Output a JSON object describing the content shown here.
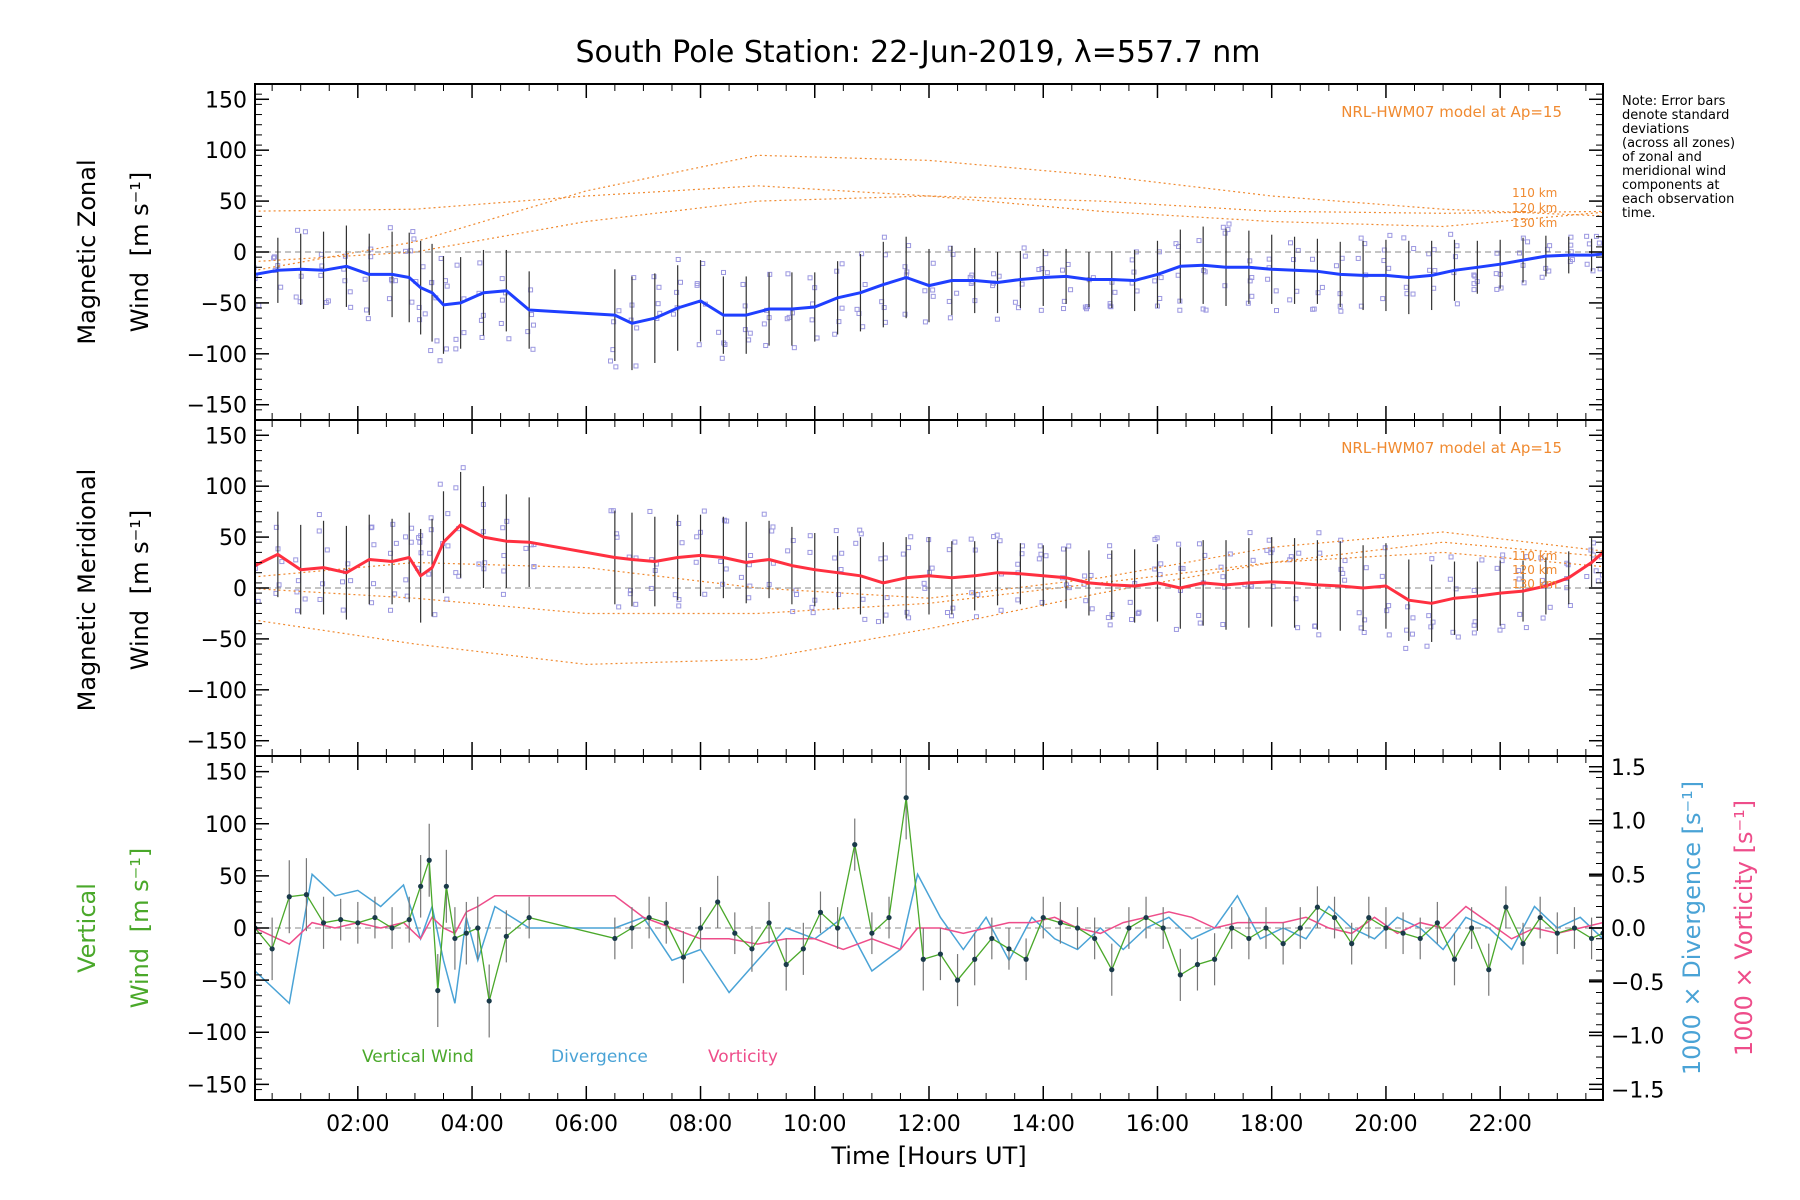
{
  "figure_title": "South Pole Station: 22-Jun-2019, λ=557.7 nm",
  "x_axis_label": "Time [Hours UT]",
  "note": "Note: Error bars\ndenote standard\ndeviations\n(across all zones)\nof zonal and\nmeridional wind\ncomponents at\neach observation\ntime.",
  "model_label": "NRL-HWM07 model at Ap=15",
  "model_altitudes": [
    "110 km",
    "120 km",
    "130 km"
  ],
  "colors": {
    "zonal_line": "#1f3fff",
    "zonal_alt": "#4aa3df",
    "meridional_line": "#ff3040",
    "model": "#f08a30",
    "scatter": "#9b97e0",
    "vertical": "#4aa82a",
    "divergence": "#4aa3d6",
    "vorticity": "#ee4d8a",
    "errorbar": "#333333",
    "zero_line": "#888888"
  },
  "chart_data": [
    {
      "type": "line",
      "panel": "zonal",
      "ylabel_line1": "Magnetic Zonal",
      "ylabel_line2": "Wind",
      "ylabel_units": "[m s⁻¹]",
      "xlim": [
        0.2,
        23.8
      ],
      "ylim": [
        -165,
        165
      ],
      "yticks": [
        -150,
        -100,
        -50,
        0,
        50,
        100,
        150
      ],
      "xticks": [
        2,
        4,
        6,
        8,
        10,
        12,
        14,
        16,
        18,
        20,
        22
      ],
      "xtick_labels": [
        "02:00",
        "04:00",
        "06:00",
        "08:00",
        "10:00",
        "12:00",
        "14:00",
        "16:00",
        "18:00",
        "20:00",
        "22:00"
      ],
      "series": [
        {
          "name": "Magnetic Zonal Wind",
          "x": [
            0.2,
            0.6,
            1.0,
            1.4,
            1.8,
            2.2,
            2.6,
            2.9,
            3.1,
            3.3,
            3.5,
            3.8,
            4.2,
            4.6,
            5.0,
            6.5,
            6.8,
            7.2,
            7.6,
            8.0,
            8.4,
            8.8,
            9.2,
            9.6,
            10.0,
            10.4,
            10.8,
            11.2,
            11.6,
            12.0,
            12.4,
            12.8,
            13.2,
            13.6,
            14.0,
            14.4,
            14.8,
            15.2,
            15.6,
            16.0,
            16.4,
            16.8,
            17.2,
            17.6,
            18.0,
            18.4,
            18.8,
            19.2,
            19.6,
            20.0,
            20.4,
            20.8,
            21.2,
            21.6,
            22.0,
            22.4,
            22.8,
            23.2,
            23.6,
            23.8
          ],
          "y": [
            -22,
            -18,
            -17,
            -18,
            -14,
            -22,
            -22,
            -25,
            -35,
            -40,
            -52,
            -50,
            -40,
            -38,
            -57,
            -62,
            -70,
            -65,
            -55,
            -48,
            -62,
            -62,
            -56,
            -56,
            -54,
            -45,
            -40,
            -32,
            -25,
            -33,
            -28,
            -28,
            -30,
            -27,
            -25,
            -24,
            -27,
            -27,
            -28,
            -22,
            -14,
            -13,
            -15,
            -15,
            -17,
            -18,
            -19,
            -22,
            -23,
            -23,
            -25,
            -23,
            -18,
            -15,
            -12,
            -8,
            -4,
            -3,
            -3,
            -2
          ],
          "error": [
            30,
            32,
            35,
            38,
            40,
            40,
            42,
            44,
            46,
            48,
            48,
            45,
            42,
            40,
            38,
            45,
            46,
            44,
            42,
            40,
            38,
            38,
            36,
            36,
            34,
            36,
            38,
            42,
            40,
            36,
            34,
            32,
            30,
            28,
            28,
            27,
            27,
            28,
            30,
            33,
            36,
            38,
            38,
            36,
            34,
            33,
            32,
            32,
            34,
            35,
            36,
            34,
            30,
            26,
            24,
            22,
            20,
            18,
            16,
            15
          ]
        },
        {
          "name": "NRL-HWM07 110 km",
          "x": [
            0,
            3,
            6,
            9,
            12,
            15,
            18,
            21,
            24
          ],
          "y": [
            40,
            42,
            55,
            65,
            55,
            40,
            30,
            25,
            40
          ]
        },
        {
          "name": "NRL-HWM07 120 km",
          "x": [
            0,
            3,
            6,
            9,
            12,
            15,
            18,
            21,
            24
          ],
          "y": [
            -20,
            10,
            60,
            95,
            90,
            75,
            55,
            42,
            35
          ]
        },
        {
          "name": "NRL-HWM07 130 km",
          "x": [
            0,
            3,
            6,
            9,
            12,
            15,
            18,
            21,
            24
          ],
          "y": [
            -10,
            0,
            30,
            50,
            55,
            50,
            40,
            38,
            40
          ]
        }
      ]
    },
    {
      "type": "line",
      "panel": "meridional",
      "ylabel_line1": "Magnetic Meridional",
      "ylabel_line2": "Wind",
      "ylabel_units": "[m s⁻¹]",
      "xlim": [
        0.2,
        23.8
      ],
      "ylim": [
        -165,
        165
      ],
      "yticks": [
        -150,
        -100,
        -50,
        0,
        50,
        100,
        150
      ],
      "series": [
        {
          "name": "Magnetic Meridional Wind",
          "x": [
            0.2,
            0.6,
            1.0,
            1.4,
            1.8,
            2.2,
            2.6,
            2.9,
            3.1,
            3.3,
            3.5,
            3.8,
            4.2,
            4.6,
            5.0,
            6.5,
            6.8,
            7.2,
            7.6,
            8.0,
            8.4,
            8.8,
            9.2,
            9.6,
            10.0,
            10.4,
            10.8,
            11.2,
            11.6,
            12.0,
            12.4,
            12.8,
            13.2,
            13.6,
            14.0,
            14.4,
            14.8,
            15.2,
            15.6,
            16.0,
            16.4,
            16.8,
            17.2,
            17.6,
            18.0,
            18.4,
            18.8,
            19.2,
            19.6,
            20.0,
            20.4,
            20.8,
            21.2,
            21.6,
            22.0,
            22.4,
            22.8,
            23.2,
            23.6,
            23.8
          ],
          "y": [
            22,
            33,
            18,
            20,
            15,
            28,
            26,
            30,
            12,
            20,
            45,
            62,
            50,
            46,
            45,
            30,
            28,
            26,
            30,
            32,
            30,
            25,
            28,
            22,
            18,
            15,
            12,
            5,
            10,
            12,
            10,
            12,
            15,
            14,
            12,
            10,
            5,
            3,
            2,
            5,
            0,
            5,
            3,
            5,
            6,
            5,
            3,
            2,
            0,
            2,
            -12,
            -15,
            -10,
            -8,
            -5,
            -3,
            2,
            10,
            25,
            35
          ],
          "error": [
            40,
            42,
            44,
            46,
            46,
            44,
            42,
            44,
            46,
            48,
            50,
            52,
            50,
            46,
            44,
            46,
            46,
            44,
            42,
            40,
            40,
            40,
            38,
            38,
            36,
            36,
            38,
            40,
            40,
            38,
            36,
            34,
            32,
            30,
            30,
            30,
            32,
            34,
            36,
            38,
            40,
            42,
            44,
            44,
            44,
            44,
            44,
            44,
            42,
            42,
            40,
            38,
            36,
            34,
            32,
            30,
            28,
            26,
            24,
            24
          ]
        },
        {
          "name": "NRL-HWM07 110 km",
          "x": [
            0,
            3,
            6,
            9,
            12,
            15,
            18,
            21,
            24
          ],
          "y": [
            -30,
            -55,
            -75,
            -70,
            -40,
            -5,
            25,
            45,
            30
          ]
        },
        {
          "name": "NRL-HWM07 120 km",
          "x": [
            0,
            3,
            6,
            9,
            12,
            15,
            18,
            21,
            24
          ],
          "y": [
            10,
            25,
            20,
            0,
            -10,
            10,
            40,
            55,
            35
          ]
        },
        {
          "name": "NRL-HWM07 130 km",
          "x": [
            0,
            3,
            6,
            9,
            12,
            15,
            18,
            21,
            24
          ],
          "y": [
            0,
            -10,
            -25,
            -25,
            -15,
            5,
            25,
            35,
            20
          ]
        }
      ]
    },
    {
      "type": "line",
      "panel": "vertical",
      "ylabel_line1": "Vertical",
      "ylabel_line2": "Wind",
      "ylabel_units": "[m s⁻¹]",
      "right_ylabel_divergence": "1000 × Divergence [s⁻¹]",
      "right_ylabel_vorticity": "1000 × Vorticity [s⁻¹]",
      "xlim": [
        0.2,
        23.8
      ],
      "ylim": [
        -165,
        165
      ],
      "yticks": [
        -150,
        -100,
        -50,
        0,
        50,
        100,
        150
      ],
      "y2lim": [
        -1.6,
        1.6
      ],
      "y2ticks": [
        -1.5,
        -1.0,
        -0.5,
        0.0,
        0.5,
        1.0,
        1.5
      ],
      "y2tick_labels": [
        "−1.5",
        "−1.0",
        "−0.5",
        "0.0",
        "0.5",
        "1.0",
        "1.5"
      ],
      "legend": [
        "Vertical Wind",
        "Divergence",
        "Vorticity"
      ],
      "series": [
        {
          "name": "Vertical Wind",
          "x": [
            0.2,
            0.5,
            0.8,
            1.1,
            1.4,
            1.7,
            2.0,
            2.3,
            2.6,
            2.9,
            3.1,
            3.25,
            3.4,
            3.55,
            3.7,
            3.9,
            4.1,
            4.3,
            4.6,
            5.0,
            6.5,
            6.8,
            7.1,
            7.4,
            7.7,
            8.0,
            8.3,
            8.6,
            8.9,
            9.2,
            9.5,
            9.8,
            10.1,
            10.4,
            10.7,
            11.0,
            11.3,
            11.6,
            11.9,
            12.2,
            12.5,
            12.8,
            13.1,
            13.4,
            13.7,
            14.0,
            14.3,
            14.6,
            14.9,
            15.2,
            15.5,
            15.8,
            16.1,
            16.4,
            16.7,
            17.0,
            17.3,
            17.6,
            17.9,
            18.2,
            18.5,
            18.8,
            19.1,
            19.4,
            19.7,
            20.0,
            20.3,
            20.6,
            20.9,
            21.2,
            21.5,
            21.8,
            22.1,
            22.4,
            22.7,
            23.0,
            23.3,
            23.6,
            23.8
          ],
          "y": [
            0,
            -20,
            30,
            32,
            5,
            8,
            5,
            10,
            0,
            8,
            40,
            65,
            -60,
            40,
            -10,
            -5,
            0,
            -70,
            -8,
            10,
            -10,
            0,
            10,
            5,
            -28,
            0,
            25,
            -5,
            -20,
            5,
            -35,
            -20,
            15,
            0,
            80,
            -5,
            10,
            125,
            -30,
            -25,
            -50,
            -30,
            -10,
            -20,
            -30,
            10,
            5,
            0,
            -10,
            -40,
            0,
            10,
            0,
            -45,
            -35,
            -30,
            0,
            -10,
            0,
            -15,
            0,
            20,
            10,
            -15,
            10,
            0,
            -5,
            -10,
            5,
            -30,
            0,
            -40,
            20,
            -15,
            10,
            -5,
            0,
            -10,
            -5
          ],
          "error": [
            25,
            30,
            35,
            35,
            25,
            20,
            20,
            20,
            20,
            22,
            30,
            35,
            35,
            35,
            30,
            30,
            30,
            35,
            25,
            20,
            20,
            20,
            20,
            20,
            25,
            20,
            25,
            20,
            22,
            20,
            25,
            25,
            20,
            20,
            25,
            20,
            20,
            40,
            30,
            25,
            25,
            25,
            20,
            20,
            20,
            20,
            20,
            20,
            20,
            25,
            20,
            20,
            20,
            25,
            25,
            25,
            20,
            20,
            20,
            20,
            20,
            20,
            20,
            20,
            20,
            20,
            20,
            20,
            20,
            25,
            20,
            25,
            20,
            20,
            20,
            20,
            20,
            20,
            20
          ]
        },
        {
          "name": "Divergence",
          "x": [
            0.2,
            0.8,
            1.2,
            1.6,
            2.0,
            2.4,
            2.8,
            3.1,
            3.3,
            3.5,
            3.7,
            3.9,
            4.1,
            4.4,
            5.0,
            6.5,
            7.0,
            7.5,
            8.0,
            8.5,
            9.0,
            9.5,
            10.0,
            10.5,
            11.0,
            11.5,
            11.8,
            12.2,
            12.6,
            13.0,
            13.4,
            13.8,
            14.2,
            14.6,
            15.0,
            15.4,
            15.8,
            16.2,
            16.6,
            17.0,
            17.4,
            17.8,
            18.2,
            18.6,
            19.0,
            19.4,
            19.8,
            20.2,
            20.6,
            21.0,
            21.4,
            21.8,
            22.2,
            22.6,
            23.0,
            23.4,
            23.8
          ],
          "y": [
            -0.4,
            -0.7,
            0.5,
            0.3,
            0.35,
            0.2,
            0.4,
            -0.1,
            0.2,
            -0.3,
            -0.7,
            0.1,
            -0.3,
            0.2,
            0.0,
            0.0,
            0.1,
            -0.3,
            -0.2,
            -0.6,
            -0.3,
            0.0,
            -0.1,
            0.1,
            -0.4,
            -0.2,
            0.5,
            0.1,
            -0.2,
            0.1,
            -0.3,
            0.1,
            -0.1,
            -0.2,
            0.0,
            -0.2,
            0.0,
            0.1,
            -0.1,
            0.0,
            0.3,
            -0.1,
            0.0,
            -0.1,
            0.2,
            0.0,
            -0.1,
            0.1,
            0.0,
            -0.2,
            0.1,
            0.0,
            -0.2,
            0.2,
            0.0,
            0.1,
            -0.1
          ]
        },
        {
          "name": "Vorticity",
          "x": [
            0.2,
            0.8,
            1.2,
            1.6,
            2.0,
            2.4,
            2.8,
            3.1,
            3.3,
            3.5,
            3.7,
            3.9,
            4.1,
            4.4,
            5.0,
            6.5,
            7.0,
            7.5,
            8.0,
            8.5,
            9.0,
            9.5,
            10.0,
            10.5,
            11.0,
            11.5,
            11.8,
            12.2,
            12.6,
            13.0,
            13.4,
            13.8,
            14.2,
            14.6,
            15.0,
            15.4,
            15.8,
            16.2,
            16.6,
            17.0,
            17.4,
            17.8,
            18.2,
            18.6,
            19.0,
            19.4,
            19.8,
            20.2,
            20.6,
            21.0,
            21.4,
            21.8,
            22.2,
            22.6,
            23.0,
            23.4,
            23.8
          ],
          "y": [
            0.0,
            -0.15,
            0.05,
            0.0,
            0.05,
            0.0,
            0.05,
            -0.1,
            0.1,
            0.0,
            -0.05,
            0.15,
            0.2,
            0.3,
            0.3,
            0.3,
            0.1,
            0.0,
            -0.1,
            -0.1,
            -0.15,
            -0.1,
            -0.1,
            -0.2,
            -0.1,
            -0.2,
            0.0,
            0.0,
            -0.05,
            0.0,
            0.05,
            0.05,
            0.1,
            0.0,
            -0.05,
            0.05,
            0.1,
            0.15,
            0.1,
            0.0,
            0.05,
            0.05,
            0.05,
            0.1,
            0.0,
            -0.05,
            0.1,
            -0.05,
            0.05,
            0.0,
            0.2,
            0.05,
            -0.1,
            0.0,
            -0.05,
            0.0,
            0.05
          ]
        }
      ]
    }
  ]
}
